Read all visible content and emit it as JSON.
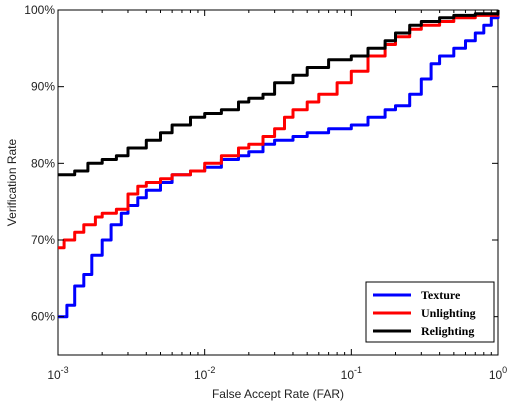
{
  "chart_data": {
    "type": "line",
    "title": "",
    "xlabel": "False Accept Rate (FAR)",
    "ylabel": "Verification Rate",
    "x_scale": "log",
    "xlim": [
      0.001,
      1
    ],
    "ylim": [
      0.55,
      1.0
    ],
    "x_ticks": [
      {
        "value": 0.001,
        "base": "10",
        "exp": "-3"
      },
      {
        "value": 0.01,
        "base": "10",
        "exp": "-2"
      },
      {
        "value": 0.1,
        "base": "10",
        "exp": "-1"
      },
      {
        "value": 1,
        "base": "10",
        "exp": "0"
      }
    ],
    "y_ticks": [
      {
        "value": 0.6,
        "label": "60%"
      },
      {
        "value": 0.7,
        "label": "70%"
      },
      {
        "value": 0.8,
        "label": "80%"
      },
      {
        "value": 0.9,
        "label": "90%"
      },
      {
        "value": 1.0,
        "label": "100%"
      }
    ],
    "grid": false,
    "legend_position": "bottom-right",
    "series": [
      {
        "name": "Texture",
        "color": "#0000ff",
        "points": [
          [
            0.001,
            0.6
          ],
          [
            0.00115,
            0.615
          ],
          [
            0.0013,
            0.64
          ],
          [
            0.0015,
            0.655
          ],
          [
            0.0017,
            0.68
          ],
          [
            0.002,
            0.7
          ],
          [
            0.0023,
            0.72
          ],
          [
            0.0027,
            0.735
          ],
          [
            0.003,
            0.745
          ],
          [
            0.0035,
            0.755
          ],
          [
            0.004,
            0.765
          ],
          [
            0.005,
            0.775
          ],
          [
            0.006,
            0.785
          ],
          [
            0.008,
            0.79
          ],
          [
            0.01,
            0.795
          ],
          [
            0.013,
            0.805
          ],
          [
            0.017,
            0.81
          ],
          [
            0.02,
            0.815
          ],
          [
            0.025,
            0.825
          ],
          [
            0.03,
            0.83
          ],
          [
            0.04,
            0.835
          ],
          [
            0.05,
            0.84
          ],
          [
            0.07,
            0.845
          ],
          [
            0.1,
            0.85
          ],
          [
            0.13,
            0.86
          ],
          [
            0.17,
            0.87
          ],
          [
            0.2,
            0.875
          ],
          [
            0.25,
            0.89
          ],
          [
            0.3,
            0.91
          ],
          [
            0.35,
            0.93
          ],
          [
            0.4,
            0.94
          ],
          [
            0.5,
            0.95
          ],
          [
            0.6,
            0.96
          ],
          [
            0.7,
            0.97
          ],
          [
            0.8,
            0.98
          ],
          [
            0.9,
            0.99
          ],
          [
            1.0,
            1.0
          ]
        ]
      },
      {
        "name": "Unlighting",
        "color": "#ff0000",
        "points": [
          [
            0.001,
            0.69
          ],
          [
            0.0011,
            0.7
          ],
          [
            0.0013,
            0.71
          ],
          [
            0.0015,
            0.72
          ],
          [
            0.0018,
            0.73
          ],
          [
            0.002,
            0.735
          ],
          [
            0.0025,
            0.74
          ],
          [
            0.003,
            0.76
          ],
          [
            0.0035,
            0.77
          ],
          [
            0.004,
            0.775
          ],
          [
            0.005,
            0.78
          ],
          [
            0.006,
            0.785
          ],
          [
            0.008,
            0.79
          ],
          [
            0.01,
            0.8
          ],
          [
            0.013,
            0.81
          ],
          [
            0.017,
            0.82
          ],
          [
            0.02,
            0.825
          ],
          [
            0.025,
            0.835
          ],
          [
            0.03,
            0.845
          ],
          [
            0.035,
            0.86
          ],
          [
            0.04,
            0.87
          ],
          [
            0.05,
            0.88
          ],
          [
            0.06,
            0.89
          ],
          [
            0.08,
            0.905
          ],
          [
            0.1,
            0.92
          ],
          [
            0.13,
            0.94
          ],
          [
            0.17,
            0.955
          ],
          [
            0.2,
            0.965
          ],
          [
            0.25,
            0.975
          ],
          [
            0.3,
            0.98
          ],
          [
            0.4,
            0.985
          ],
          [
            0.5,
            0.99
          ],
          [
            0.7,
            0.993
          ],
          [
            1.0,
            1.0
          ]
        ]
      },
      {
        "name": "Relighting",
        "color": "#000000",
        "points": [
          [
            0.001,
            0.785
          ],
          [
            0.0013,
            0.79
          ],
          [
            0.0016,
            0.8
          ],
          [
            0.002,
            0.805
          ],
          [
            0.0025,
            0.81
          ],
          [
            0.003,
            0.82
          ],
          [
            0.004,
            0.83
          ],
          [
            0.005,
            0.84
          ],
          [
            0.006,
            0.85
          ],
          [
            0.008,
            0.86
          ],
          [
            0.01,
            0.865
          ],
          [
            0.013,
            0.87
          ],
          [
            0.017,
            0.88
          ],
          [
            0.02,
            0.885
          ],
          [
            0.025,
            0.89
          ],
          [
            0.03,
            0.905
          ],
          [
            0.04,
            0.915
          ],
          [
            0.05,
            0.925
          ],
          [
            0.07,
            0.935
          ],
          [
            0.1,
            0.94
          ],
          [
            0.13,
            0.95
          ],
          [
            0.17,
            0.96
          ],
          [
            0.2,
            0.97
          ],
          [
            0.25,
            0.98
          ],
          [
            0.3,
            0.985
          ],
          [
            0.4,
            0.99
          ],
          [
            0.5,
            0.993
          ],
          [
            0.7,
            0.995
          ],
          [
            1.0,
            1.0
          ]
        ]
      }
    ]
  }
}
